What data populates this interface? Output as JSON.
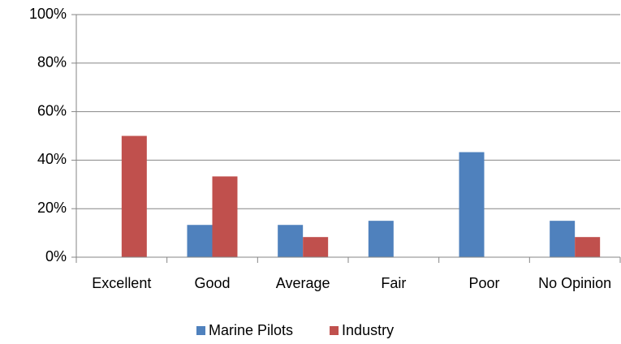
{
  "chart_data": {
    "type": "bar",
    "categories": [
      "Excellent",
      "Good",
      "Average",
      "Fair",
      "Poor",
      "No Opinion"
    ],
    "series": [
      {
        "name": "Marine Pilots",
        "color": "#4f81bd",
        "values": [
          0,
          13.3,
          13.3,
          15,
          43.3,
          15
        ]
      },
      {
        "name": "Industry",
        "color": "#c0504d",
        "values": [
          50,
          33.3,
          8.3,
          0,
          0,
          8.3
        ]
      }
    ],
    "ylim": [
      0,
      100
    ],
    "yticks": [
      {
        "value": 0,
        "label": "0%"
      },
      {
        "value": 20,
        "label": "20%"
      },
      {
        "value": 40,
        "label": "40%"
      },
      {
        "value": 60,
        "label": "60%"
      },
      {
        "value": 80,
        "label": "80%"
      },
      {
        "value": 100,
        "label": "100%"
      }
    ],
    "grid": true,
    "legend": "bottom"
  }
}
